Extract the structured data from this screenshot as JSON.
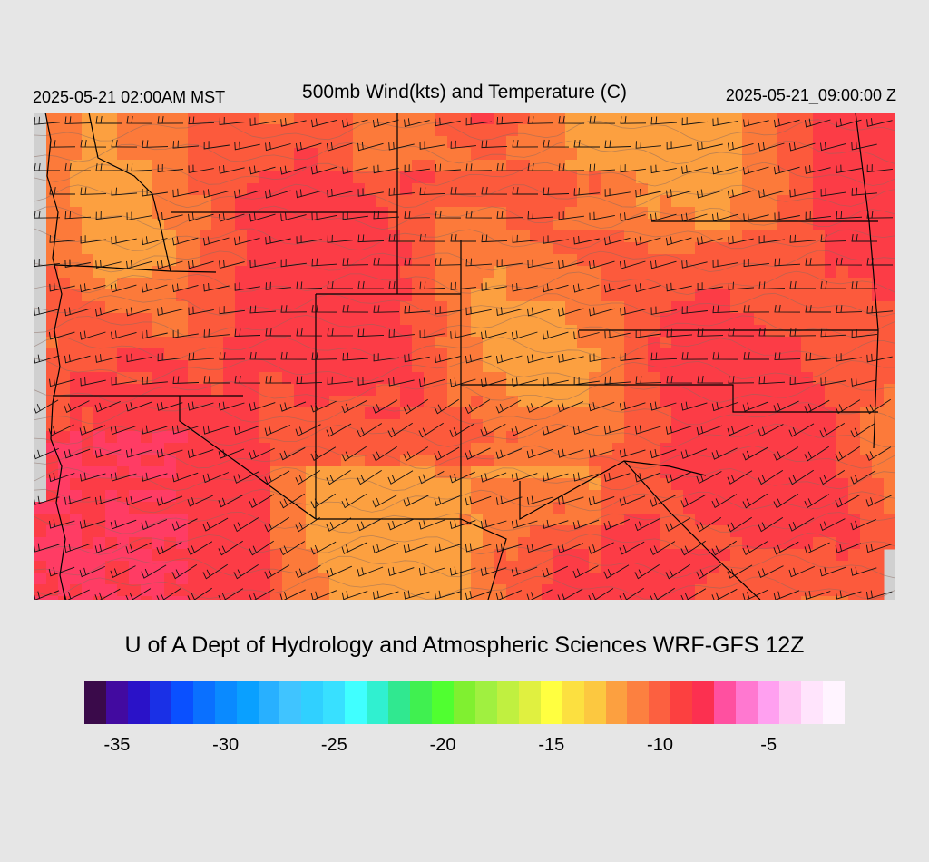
{
  "header": {
    "local_time": "2025-05-21 02:00AM MST",
    "title": "500mb Wind(kts) and Temperature (C)",
    "valid_time": "2025-05-21_09:00:00 Z"
  },
  "credit": "U of A Dept of Hydrology and Atmospheric Sciences WRF-GFS 12Z",
  "colorbar": {
    "colors": [
      "#3a0a4a",
      "#420aa0",
      "#2a12c8",
      "#1a30e6",
      "#0a50ff",
      "#0a70ff",
      "#0a8aff",
      "#0aa0ff",
      "#28b0ff",
      "#40c4ff",
      "#30d0ff",
      "#38e0ff",
      "#40ffff",
      "#30f0d0",
      "#30e890",
      "#40f050",
      "#50ff30",
      "#80f030",
      "#a0f040",
      "#c0f040",
      "#e0f040",
      "#ffff40",
      "#fce040",
      "#fcc840",
      "#fca040",
      "#fc8040",
      "#fc6040",
      "#fc4040",
      "#fc3050",
      "#ff50a0",
      "#ff78d0",
      "#ffa0f0",
      "#ffc8f4",
      "#ffe4fc",
      "#fff4ff"
    ],
    "tick_labels": [
      "-35",
      "-30",
      "-25",
      "-20",
      "-15",
      "-10",
      "-5"
    ]
  },
  "legend": {
    "min": -36,
    "max": -1,
    "step": 1,
    "unit": "C"
  },
  "map_colors": {
    "warm": "#fc3c46",
    "mid": "#fc5a3c",
    "orange": "#fc7a3a",
    "light_orange": "#fca040",
    "pink": "#ff3c64",
    "border": "#000000",
    "contour": "#777777",
    "no_data": "#d0d0d0"
  }
}
